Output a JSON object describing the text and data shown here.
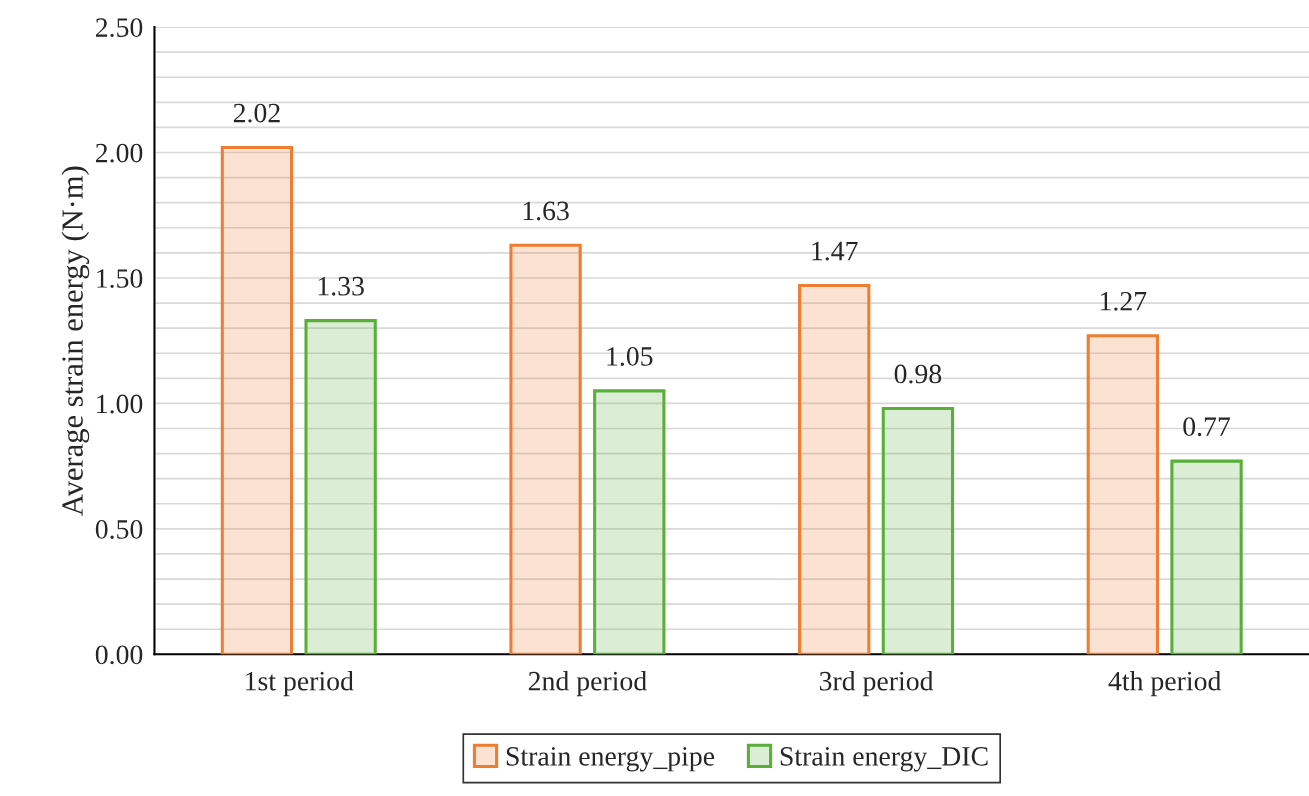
{
  "chart_data": {
    "type": "bar",
    "ylabel": "Average strain energy (N·m)",
    "categories": [
      "1st period",
      "2nd period",
      "3rd period",
      "4th period"
    ],
    "series": [
      {
        "name": "Strain energy_pipe",
        "color": "#ed7d31",
        "values": [
          2.02,
          1.63,
          1.47,
          1.27
        ]
      },
      {
        "name": "Strain energy_DIC",
        "color": "#5aae3a",
        "values": [
          1.33,
          1.05,
          0.98,
          0.77
        ]
      }
    ],
    "data_labels": true,
    "ylim": [
      0,
      2.5
    ],
    "yticks": [
      {
        "value": 0,
        "label": "0.00"
      },
      {
        "value": 0.1,
        "label": null
      },
      {
        "value": 0.2,
        "label": null
      },
      {
        "value": 0.3,
        "label": null
      },
      {
        "value": 0.4,
        "label": null
      },
      {
        "value": 0.5,
        "label": "0.50"
      },
      {
        "value": 0.6,
        "label": null
      },
      {
        "value": 0.7,
        "label": null
      },
      {
        "value": 0.8,
        "label": null
      },
      {
        "value": 0.9,
        "label": null
      },
      {
        "value": 1.0,
        "label": "1.00"
      },
      {
        "value": 1.1,
        "label": null
      },
      {
        "value": 1.2,
        "label": null
      },
      {
        "value": 1.3,
        "label": null
      },
      {
        "value": 1.4,
        "label": null
      },
      {
        "value": 1.5,
        "label": "1.50"
      },
      {
        "value": 1.6,
        "label": null
      },
      {
        "value": 1.7,
        "label": null
      },
      {
        "value": 1.8,
        "label": null
      },
      {
        "value": 1.9,
        "label": null
      },
      {
        "value": 2.0,
        "label": "2.00"
      },
      {
        "value": 2.1,
        "label": null
      },
      {
        "value": 2.2,
        "label": null
      },
      {
        "value": 2.3,
        "label": null
      },
      {
        "value": 2.4,
        "label": null
      },
      {
        "value": 2.5,
        "label": "2.50"
      }
    ],
    "grid": "y",
    "legend": "bottom"
  }
}
